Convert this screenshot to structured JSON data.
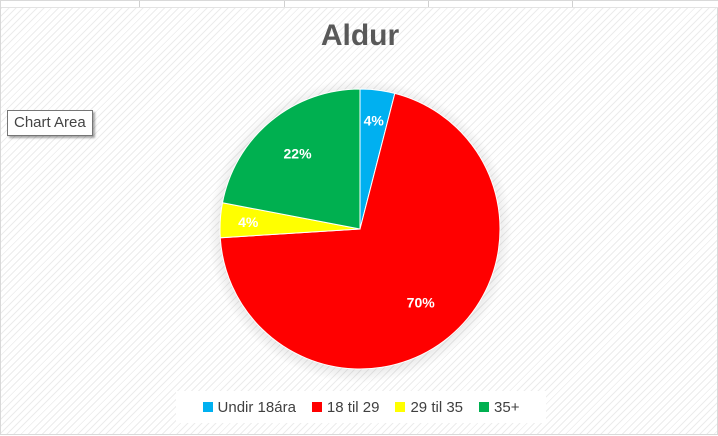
{
  "tooltip": {
    "label": "Chart Area"
  },
  "chart_data": {
    "type": "pie",
    "title": "Aldur",
    "categories": [
      "Undir 18ára",
      "18 til 29",
      "29 til 35",
      "35+"
    ],
    "values": [
      4,
      70,
      4,
      22
    ],
    "labels": [
      "4%",
      "70%",
      "4%",
      "22%"
    ],
    "colors": [
      "#00B0F0",
      "#FF0000",
      "#FFFF00",
      "#00B050"
    ],
    "legend_position": "bottom"
  }
}
